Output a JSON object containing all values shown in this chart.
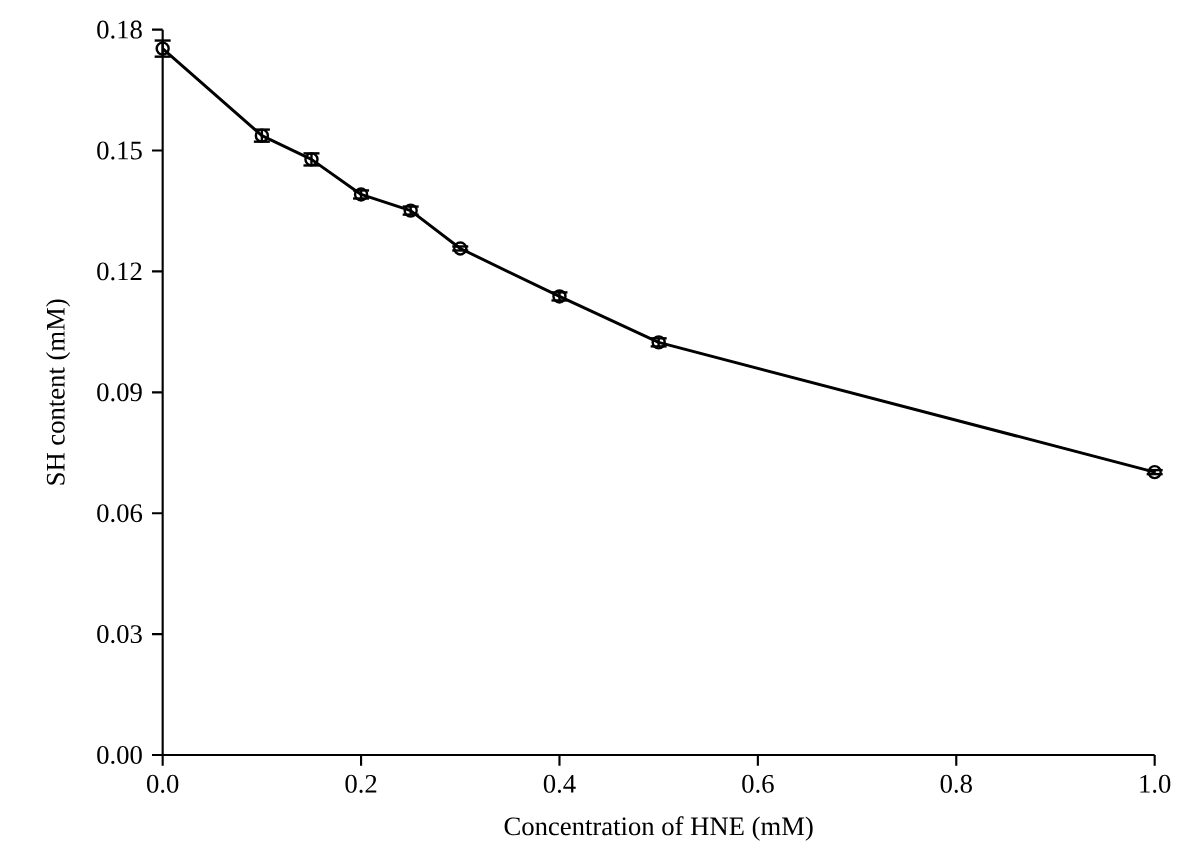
{
  "chart_data": {
    "type": "line",
    "xlabel": "Concentration of HNE (mM)",
    "ylabel": "SH content (mM)",
    "x": [
      0,
      0.1,
      0.15,
      0.2,
      0.25,
      0.3,
      0.4,
      0.5,
      1.0
    ],
    "series": [
      {
        "color": "#000000",
        "values": [
          0.1753,
          0.1537,
          0.1478,
          0.1391,
          0.1351,
          0.1257,
          0.1138,
          0.1024,
          0.0702
        ],
        "errors": [
          0.002,
          0.0015,
          0.0015,
          0.001,
          0.001,
          0.0005,
          0.001,
          0.001,
          0.0005
        ]
      }
    ],
    "xlim": [
      0,
      1
    ],
    "ylim": [
      0,
      0.18
    ],
    "xticks": [
      {
        "value": 0,
        "label": "0.0"
      },
      {
        "value": 0.2,
        "label": "0.2"
      },
      {
        "value": 0.4,
        "label": "0.4"
      },
      {
        "value": 0.6,
        "label": "0.6"
      },
      {
        "value": 0.8,
        "label": "0.8"
      },
      {
        "value": 1.0,
        "label": "1.0"
      }
    ],
    "yticks": [
      {
        "value": 0,
        "label": "0.00"
      },
      {
        "value": 0.03,
        "label": "0.03"
      },
      {
        "value": 0.06,
        "label": "0.06"
      },
      {
        "value": 0.09,
        "label": "0.09"
      },
      {
        "value": 0.12,
        "label": "0.12"
      },
      {
        "value": 0.15,
        "label": "0.15"
      },
      {
        "value": 0.18,
        "label": "0.18"
      }
    ],
    "marker": "circle",
    "line_style": "solid"
  }
}
